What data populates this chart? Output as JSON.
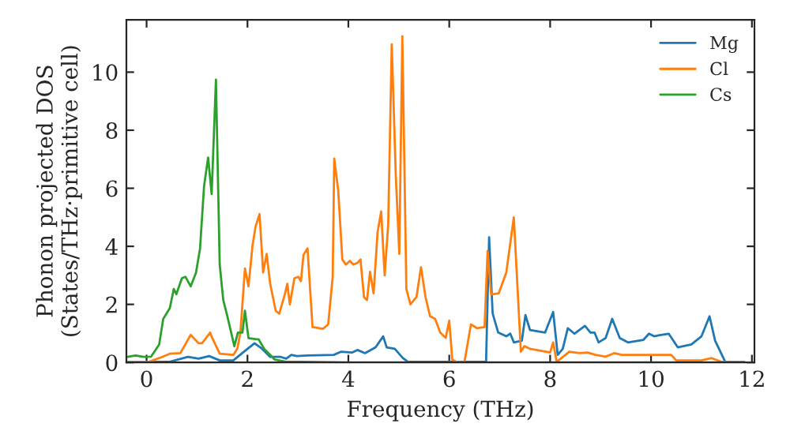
{
  "chart_data": {
    "type": "line",
    "xlabel": "Frequency (THz)",
    "ylabel": "Phonon projected DOS\n(States/THz·primitive cell)",
    "xlim": [
      -0.4,
      12.05
    ],
    "ylim": [
      0,
      11.8
    ],
    "xticks": [
      0,
      2,
      4,
      6,
      8,
      10,
      12
    ],
    "yticks": [
      0,
      2,
      4,
      6,
      8,
      10
    ],
    "grid": false,
    "legend": "top right",
    "series": [
      {
        "name": "Mg",
        "color": "#1f77b4",
        "x": [
          -0.375,
          0.25,
          0.46,
          0.82,
          1.03,
          1.24,
          1.45,
          1.72,
          1.93,
          2.14,
          2.29,
          2.45,
          2.66,
          2.77,
          2.87,
          2.98,
          3.19,
          3.71,
          3.86,
          4.07,
          4.18,
          4.33,
          4.54,
          4.69,
          4.76,
          4.92,
          5.08,
          5.18,
          6.6,
          6.73,
          6.79,
          6.86,
          6.97,
          7.13,
          7.21,
          7.28,
          7.44,
          7.51,
          7.6,
          7.9,
          8.06,
          8.15,
          8.25,
          8.35,
          8.48,
          8.69,
          8.8,
          8.88,
          8.96,
          9.1,
          9.23,
          9.38,
          9.54,
          9.85,
          9.96,
          10.06,
          10.17,
          10.35,
          10.53,
          10.8,
          11.0,
          11.16,
          11.27,
          11.47,
          11.85
        ],
        "values": [
          0,
          0.02,
          0.02,
          0.19,
          0.13,
          0.22,
          0.07,
          0.07,
          0.37,
          0.66,
          0.47,
          0.19,
          0.19,
          0.13,
          0.26,
          0.22,
          0.24,
          0.26,
          0.37,
          0.34,
          0.43,
          0.32,
          0.52,
          0.9,
          0.52,
          0.47,
          0.15,
          0.02,
          0.02,
          0.02,
          4.31,
          1.69,
          1.03,
          0.9,
          0.99,
          0.69,
          0.75,
          1.63,
          1.12,
          1.03,
          1.74,
          0.26,
          0.47,
          1.18,
          0.99,
          1.26,
          1.03,
          1.03,
          0.69,
          0.84,
          1.5,
          0.84,
          0.69,
          0.78,
          0.99,
          0.9,
          0.94,
          0.99,
          0.52,
          0.62,
          0.9,
          1.59,
          0.75,
          0.02,
          0
        ]
      },
      {
        "name": "Cl",
        "color": "#ff7f0e",
        "x": [
          -0.375,
          0.04,
          0.25,
          0.46,
          0.67,
          0.875,
          1.03,
          1.1,
          1.26,
          1.3,
          1.45,
          1.72,
          1.8,
          1.86,
          1.95,
          2.02,
          2.1,
          2.16,
          2.24,
          2.31,
          2.38,
          2.45,
          2.56,
          2.63,
          2.74,
          2.79,
          2.84,
          2.93,
          3.01,
          3.06,
          3.11,
          3.19,
          3.29,
          3.5,
          3.6,
          3.69,
          3.72,
          3.8,
          3.88,
          3.95,
          4.03,
          4.1,
          4.18,
          4.24,
          4.31,
          4.37,
          4.43,
          4.5,
          4.58,
          4.65,
          4.72,
          4.79,
          4.86,
          4.94,
          5.01,
          5.07,
          5.15,
          5.23,
          5.35,
          5.44,
          5.53,
          5.62,
          5.72,
          5.82,
          5.93,
          6.0,
          6.06,
          6.14,
          6.3,
          6.43,
          6.55,
          6.7,
          6.76,
          6.83,
          6.98,
          7.13,
          7.28,
          7.42,
          7.49,
          7.6,
          8.0,
          8.06,
          8.13,
          8.38,
          8.58,
          8.74,
          8.9,
          9.1,
          9.27,
          9.42,
          9.94,
          10.4,
          10.5,
          11.0,
          11.2,
          11.4,
          11.85
        ],
        "values": [
          0.02,
          0.02,
          0.15,
          0.3,
          0.32,
          0.95,
          0.66,
          0.66,
          1.03,
          0.85,
          0.3,
          0.26,
          0.48,
          1.03,
          3.24,
          2.62,
          4.02,
          4.68,
          5.11,
          3.1,
          3.74,
          2.71,
          1.78,
          1.68,
          2.34,
          2.71,
          2.0,
          2.9,
          2.95,
          2.8,
          3.7,
          3.93,
          1.22,
          1.16,
          1.31,
          2.95,
          7.02,
          5.9,
          3.55,
          3.37,
          3.5,
          3.37,
          3.43,
          3.55,
          2.25,
          2.15,
          3.12,
          2.38,
          4.5,
          5.2,
          3.0,
          4.76,
          10.96,
          6.46,
          3.74,
          11.24,
          2.53,
          2.0,
          2.25,
          3.28,
          2.25,
          1.59,
          1.5,
          1.03,
          0.85,
          1.44,
          0.1,
          0.02,
          0,
          1.31,
          1.18,
          1.22,
          3.84,
          2.34,
          2.38,
          3.09,
          5.0,
          0.37,
          0.56,
          0.47,
          0.34,
          0.69,
          0.02,
          0.37,
          0.32,
          0.34,
          0.26,
          0.2,
          0.32,
          0.26,
          0.26,
          0.26,
          0.07,
          0.07,
          0.15,
          0.02,
          0.02
        ]
      },
      {
        "name": "Cs",
        "color": "#2ca02c",
        "x": [
          -0.375,
          -0.22,
          -0.06,
          0.09,
          0.25,
          0.33,
          0.46,
          0.54,
          0.59,
          0.7,
          0.77,
          0.875,
          0.98,
          1.06,
          1.14,
          1.22,
          1.29,
          1.375,
          1.45,
          1.52,
          1.6,
          1.74,
          1.81,
          1.9,
          1.95,
          2.02,
          2.18,
          2.22,
          2.33,
          2.54,
          2.75,
          4.0,
          8.0,
          11.85
        ],
        "values": [
          0.19,
          0.24,
          0.19,
          0.2,
          0.62,
          1.5,
          1.87,
          2.53,
          2.35,
          2.9,
          2.95,
          2.62,
          3.09,
          3.93,
          6.08,
          7.06,
          5.8,
          9.74,
          3.37,
          2.15,
          1.6,
          0.56,
          1.03,
          1.03,
          1.78,
          0.84,
          0.8,
          0.8,
          0.47,
          0.1,
          0.03,
          0,
          0,
          0
        ]
      }
    ]
  }
}
